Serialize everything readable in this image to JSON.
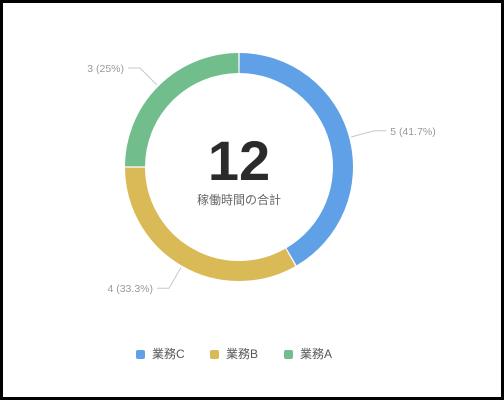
{
  "chart_data": {
    "type": "pie",
    "donut": true,
    "categories": [
      "業務C",
      "業務B",
      "業務A"
    ],
    "values": [
      5,
      4,
      3
    ],
    "colors": [
      "#5fa0e6",
      "#dab957",
      "#71bd8b"
    ],
    "slice_labels": [
      "5 (41.7%)",
      "4 (33.3%)",
      "3 (25%)"
    ],
    "center_total": "12",
    "center_caption": "稼働時間の合計",
    "legend": {
      "position": "bottom",
      "items": [
        "業務C",
        "業務B",
        "業務A"
      ]
    },
    "title": "",
    "start_angle": "12 o'clock",
    "direction": "clockwise"
  }
}
